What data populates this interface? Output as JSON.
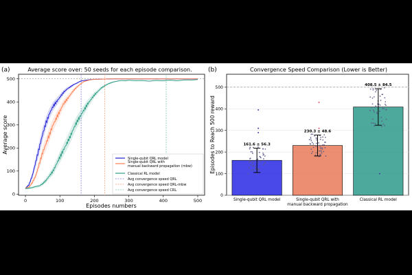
{
  "panel_a": {
    "panel_label": "(a)",
    "chart_data": {
      "type": "line",
      "title": "Average score over: 50 seeds for each episode comparison.",
      "xlabel": "Episodes numbers",
      "ylabel": "Average score",
      "xlim": [
        -20,
        520
      ],
      "ylim": [
        -5,
        520
      ],
      "xticks": [
        0,
        100,
        200,
        300,
        400,
        500
      ],
      "yticks": [
        0,
        100,
        200,
        300,
        400,
        500
      ],
      "legend_position": "lower-right",
      "series": [
        {
          "name": "Single-qubit QRL model",
          "color": "#1f1fd6",
          "x": [
            0,
            10,
            20,
            30,
            40,
            50,
            60,
            70,
            80,
            90,
            100,
            110,
            120,
            130,
            140,
            150,
            160,
            170,
            180,
            190,
            200,
            225,
            250,
            300,
            350,
            400,
            450,
            500
          ],
          "y": [
            25,
            40,
            80,
            140,
            200,
            260,
            310,
            350,
            380,
            400,
            420,
            440,
            455,
            465,
            475,
            482,
            490,
            493,
            495,
            497,
            498,
            499,
            500,
            500,
            500,
            500,
            500,
            500
          ]
        },
        {
          "name": "Single-qubit QRL with\nmanual backward propagation (mbw)",
          "color": "#ff7f50",
          "x": [
            0,
            10,
            20,
            30,
            40,
            50,
            60,
            70,
            80,
            90,
            100,
            110,
            120,
            130,
            140,
            150,
            160,
            170,
            180,
            190,
            200,
            225,
            250,
            300,
            350,
            400,
            450,
            500
          ],
          "y": [
            25,
            30,
            50,
            80,
            130,
            180,
            220,
            260,
            300,
            330,
            360,
            390,
            410,
            430,
            450,
            465,
            478,
            488,
            493,
            496,
            498,
            499,
            500,
            500,
            500,
            500,
            500,
            500
          ]
        },
        {
          "name": "Classical RL model",
          "color": "#2e9e84",
          "x": [
            0,
            20,
            40,
            50,
            60,
            70,
            80,
            90,
            100,
            110,
            120,
            130,
            140,
            150,
            160,
            170,
            180,
            190,
            200,
            210,
            220,
            230,
            240,
            250,
            260,
            270,
            280,
            290,
            300,
            320,
            340,
            360,
            380,
            400,
            420,
            440,
            460,
            480,
            500
          ],
          "y": [
            25,
            28,
            35,
            45,
            60,
            80,
            100,
            130,
            160,
            190,
            220,
            250,
            285,
            315,
            340,
            365,
            390,
            410,
            430,
            445,
            460,
            470,
            478,
            484,
            488,
            491,
            493,
            492,
            494,
            492,
            493,
            490,
            493,
            492,
            494,
            492,
            495,
            495,
            497
          ]
        }
      ],
      "vlines": [
        {
          "name": "Avg convergence speed QRL",
          "x": 161.6,
          "color": "#8080e0"
        },
        {
          "name": "Avg convergence speed QRL-mbw",
          "x": 230.3,
          "color": "#f4a07e"
        },
        {
          "name": "Avg convergence speed CRL",
          "x": 408.5,
          "color": "#7fc8b8"
        }
      ],
      "hline": {
        "y": 500,
        "color": "#888888"
      }
    }
  },
  "panel_b": {
    "panel_label": "(b)",
    "chart_data": {
      "type": "bar",
      "title": "Convergence Speed Comparison (Lower is Better)",
      "ylabel": "Episodes to Reach 500 reward",
      "categories": [
        "Single-qubit QRL model",
        "Single-qubit QRL with\nmanual backward propagation",
        "Classical RL model"
      ],
      "values": [
        161.6,
        230.3,
        408.5
      ],
      "errors": [
        56.3,
        48.6,
        84.5
      ],
      "value_labels": [
        "161.6 ± 56.3",
        "230.3 ± 48.6",
        "408.5 ± 84.5"
      ],
      "colors": [
        "#2929e6",
        "#e87a58",
        "#2d9a8a"
      ],
      "ylim": [
        0,
        560
      ],
      "yticks": [
        0,
        100,
        200,
        300,
        400,
        500
      ],
      "hline": {
        "y": 500,
        "color": "#888888"
      },
      "grid": true,
      "outliers": [
        [
          395,
          310,
          290
        ],
        [
          430,
          310
        ],
        [
          100
        ]
      ]
    }
  }
}
